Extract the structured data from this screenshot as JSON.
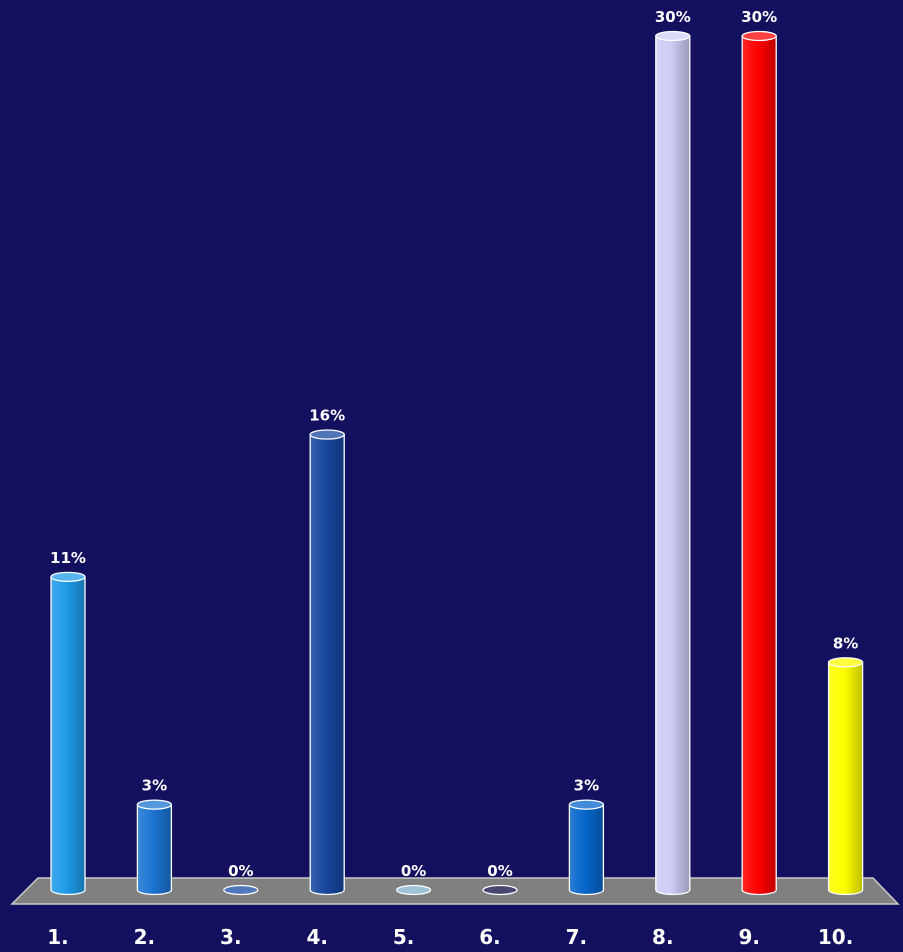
{
  "chart_data": {
    "type": "bar",
    "categories": [
      "1.",
      "2.",
      "3.",
      "4.",
      "5.",
      "6.",
      "7.",
      "8.",
      "9.",
      "10."
    ],
    "values": [
      11,
      3,
      0,
      16,
      0,
      0,
      3,
      30,
      30,
      8
    ],
    "data_labels": [
      "11%",
      "3%",
      "0%",
      "16%",
      "0%",
      "0%",
      "3%",
      "30%",
      "30%",
      "8%"
    ],
    "colors": [
      "#1e9be8",
      "#1b74d2",
      "#144aa3",
      "#16479f",
      "#7faec8",
      "#0a0840",
      "#0566cc",
      "#ccccf6",
      "#ff0000",
      "#ffff00"
    ],
    "ylim": [
      0,
      30
    ],
    "grid": false,
    "legend": "none",
    "floor_color": "#808080",
    "background": "#12105f"
  }
}
